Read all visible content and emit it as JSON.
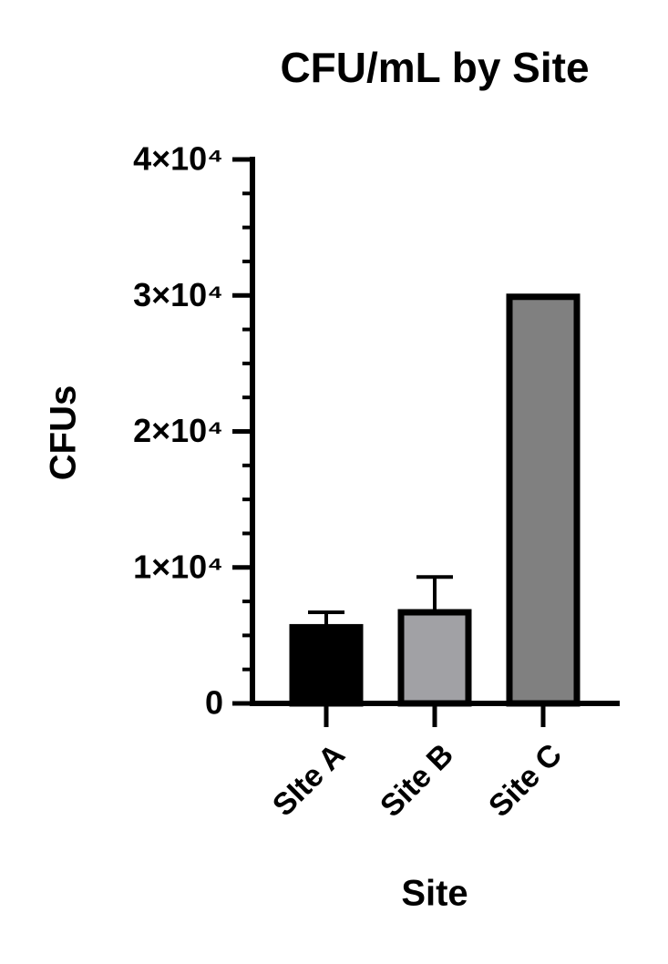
{
  "chart_data": {
    "type": "bar",
    "title": "CFU/mL by Site",
    "x_label": "Site",
    "y_label": "CFUs",
    "categories": [
      "SIte A",
      "Site B",
      "Site C"
    ],
    "values": [
      5600,
      6700,
      29900
    ],
    "errors": [
      1100,
      2600,
      null
    ],
    "colors": [
      "#000000",
      "#a1a1a5",
      "#808080"
    ],
    "edge_color": "#000000",
    "ylim": [
      0,
      40000
    ],
    "yticks": [
      0,
      {
        "value": 10000,
        "label": "1×10⁴"
      },
      {
        "value": 20000,
        "label": "2×10⁴"
      },
      {
        "value": 30000,
        "label": "3×10⁴"
      },
      {
        "value": 40000,
        "label": "4×10⁴"
      }
    ],
    "y_minor_ticks": [
      2500,
      5000,
      7500,
      12500,
      15000,
      17500,
      22500,
      25000,
      27500,
      32500,
      35000,
      37500
    ]
  }
}
